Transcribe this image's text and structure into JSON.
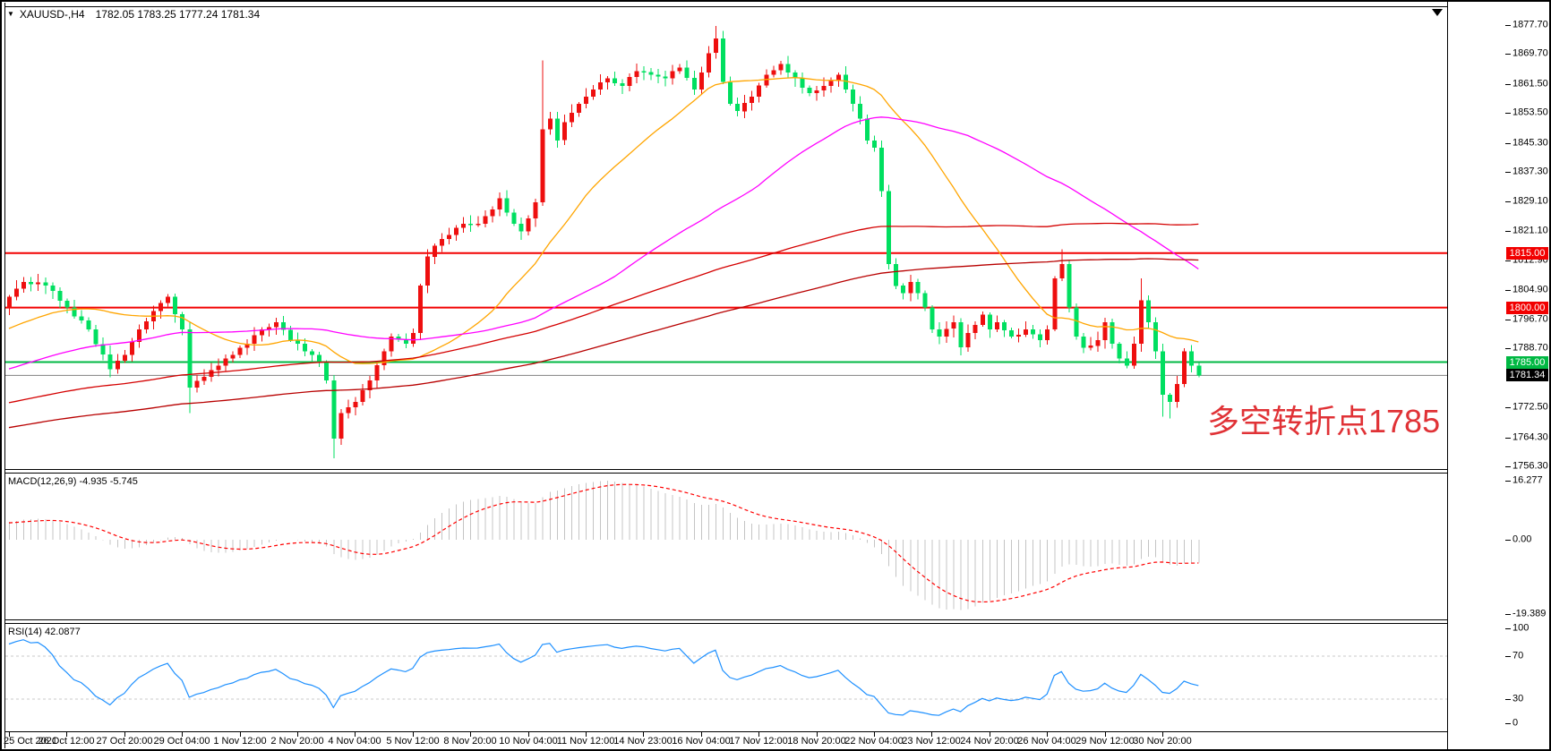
{
  "title": {
    "symbol_period": "XAUUSD-,H4",
    "ohlc": "1782.05 1783.25 1777.24 1781.34",
    "dropdown_icon": "▼"
  },
  "annotation": {
    "text": "多空转折点1785",
    "color": "#E03236"
  },
  "price_axis": {
    "ticks": [
      "1877.70",
      "1869.70",
      "1861.50",
      "1853.50",
      "1845.30",
      "1837.30",
      "1829.10",
      "1821.10",
      "1812.90",
      "1804.90",
      "1796.70",
      "1788.70",
      "1772.50",
      "1764.30",
      "1756.30"
    ],
    "badges": [
      {
        "label": "1815.00",
        "price": 1815.0,
        "bg": "#F20000",
        "fg": "#FFFFFF"
      },
      {
        "label": "1800.00",
        "price": 1800.0,
        "bg": "#F20000",
        "fg": "#FFFFFF"
      },
      {
        "label": "1785.00",
        "price": 1785.0,
        "bg": "#00B843",
        "fg": "#FFFFFF"
      }
    ],
    "current": {
      "label": "1781.34",
      "price": 1781.34,
      "bg": "#000000",
      "fg": "#FFFFFF"
    }
  },
  "time_axis": {
    "labels": [
      "25 Oct 2021",
      "26 Oct 12:00",
      "27 Oct 20:00",
      "29 Oct 04:00",
      "1 Nov 12:00",
      "2 Nov 20:00",
      "4 Nov 04:00",
      "5 Nov 12:00",
      "8 Nov 20:00",
      "10 Nov 04:00",
      "11 Nov 12:00",
      "14 Nov 23:00",
      "16 Nov 04:00",
      "17 Nov 12:00",
      "18 Nov 20:00",
      "22 Nov 04:00",
      "23 Nov 12:00",
      "24 Nov 20:00",
      "26 Nov 04:00",
      "29 Nov 12:00",
      "30 Nov 20:00"
    ]
  },
  "macd_panel": {
    "label": "MACD(12,26,9) -4.935 -5.745",
    "axis": [
      "16.277",
      "0.00",
      "-19.389"
    ]
  },
  "rsi_panel": {
    "label": "RSI(14) 42.0877",
    "axis": [
      "100",
      "70",
      "30",
      "0"
    ]
  },
  "chart_data": {
    "type": "candlestick",
    "symbol": "XAUUSD",
    "timeframe": "H4",
    "title": "XAUUSD-,H4 1782.05 1783.25 1777.24 1781.34",
    "price_scale": {
      "top": 1877.7,
      "bottom": 1756.3
    },
    "bars_total": 166,
    "bull_color": "#EE0F0F",
    "bear_color": "#00DF60",
    "ohlc_waypoints": [
      [
        0,
        1803
      ],
      [
        2,
        1807
      ],
      [
        5,
        1806
      ],
      [
        8,
        1800
      ],
      [
        11,
        1794
      ],
      [
        14,
        1783
      ],
      [
        16,
        1787
      ],
      [
        18,
        1794
      ],
      [
        20,
        1799
      ],
      [
        22,
        1803
      ],
      [
        24,
        1794
      ],
      [
        25,
        1778
      ],
      [
        27,
        1781
      ],
      [
        29,
        1784
      ],
      [
        31,
        1787
      ],
      [
        33,
        1790
      ],
      [
        35,
        1794
      ],
      [
        37,
        1796
      ],
      [
        39,
        1791
      ],
      [
        41,
        1788
      ],
      [
        43,
        1785
      ],
      [
        44,
        1780
      ],
      [
        45,
        1764
      ],
      [
        46,
        1771
      ],
      [
        48,
        1774
      ],
      [
        50,
        1780
      ],
      [
        52,
        1788
      ],
      [
        53,
        1792
      ],
      [
        55,
        1790
      ],
      [
        56,
        1793
      ],
      [
        57,
        1806
      ],
      [
        58,
        1814
      ],
      [
        59,
        1817
      ],
      [
        61,
        1820
      ],
      [
        63,
        1823
      ],
      [
        65,
        1823
      ],
      [
        67,
        1827
      ],
      [
        68,
        1830
      ],
      [
        70,
        1823
      ],
      [
        71,
        1821
      ],
      [
        73,
        1829
      ],
      [
        74,
        1849
      ],
      [
        75,
        1852
      ],
      [
        76,
        1846
      ],
      [
        77,
        1851
      ],
      [
        79,
        1856
      ],
      [
        81,
        1860
      ],
      [
        83,
        1863
      ],
      [
        85,
        1861
      ],
      [
        87,
        1865
      ],
      [
        89,
        1864
      ],
      [
        91,
        1863
      ],
      [
        93,
        1866
      ],
      [
        95,
        1860
      ],
      [
        97,
        1870
      ],
      [
        98,
        1874
      ],
      [
        99,
        1862
      ],
      [
        100,
        1856
      ],
      [
        101,
        1854
      ],
      [
        103,
        1858
      ],
      [
        105,
        1864
      ],
      [
        107,
        1867
      ],
      [
        109,
        1863
      ],
      [
        111,
        1859
      ],
      [
        113,
        1861
      ],
      [
        115,
        1864
      ],
      [
        116,
        1860
      ],
      [
        117,
        1856
      ],
      [
        118,
        1852
      ],
      [
        119,
        1846
      ],
      [
        120,
        1844
      ],
      [
        121,
        1832
      ],
      [
        122,
        1812
      ],
      [
        123,
        1806
      ],
      [
        124,
        1804
      ],
      [
        125,
        1807
      ],
      [
        126,
        1804
      ],
      [
        127,
        1800
      ],
      [
        128,
        1794
      ],
      [
        129,
        1792
      ],
      [
        131,
        1796
      ],
      [
        132,
        1789
      ],
      [
        133,
        1793
      ],
      [
        135,
        1798
      ],
      [
        136,
        1794
      ],
      [
        137,
        1796
      ],
      [
        139,
        1792
      ],
      [
        141,
        1794
      ],
      [
        143,
        1791
      ],
      [
        144,
        1794
      ],
      [
        145,
        1808
      ],
      [
        146,
        1812
      ],
      [
        147,
        1800
      ],
      [
        148,
        1792
      ],
      [
        149,
        1789
      ],
      [
        151,
        1791
      ],
      [
        152,
        1796
      ],
      [
        153,
        1790
      ],
      [
        154,
        1786
      ],
      [
        155,
        1784
      ],
      [
        156,
        1790
      ],
      [
        157,
        1802
      ],
      [
        158,
        1796
      ],
      [
        159,
        1788
      ],
      [
        160,
        1776
      ],
      [
        161,
        1774
      ],
      [
        162,
        1779
      ],
      [
        163,
        1788
      ],
      [
        164,
        1784
      ],
      [
        165,
        1781.3
      ]
    ],
    "wick_overrides": {
      "25": {
        "low": 1771
      },
      "45": {
        "low": 1758.6
      },
      "74": {
        "high": 1868
      },
      "98": {
        "high": 1877.4
      },
      "146": {
        "high": 1816
      },
      "157": {
        "high": 1808
      },
      "160": {
        "low": 1770
      },
      "161": {
        "low": 1769.5
      }
    },
    "history_waypoints": [
      [
        -200,
        1740
      ],
      [
        -170,
        1748
      ],
      [
        -150,
        1753
      ],
      [
        -130,
        1760
      ],
      [
        -110,
        1757
      ],
      [
        -90,
        1765
      ],
      [
        -70,
        1772
      ],
      [
        -50,
        1769
      ],
      [
        -30,
        1783
      ],
      [
        -15,
        1792
      ],
      [
        -5,
        1798
      ],
      [
        -1,
        1801
      ]
    ],
    "horizontal_levels": [
      {
        "price": 1815.0,
        "color": "#F20000",
        "width": 2
      },
      {
        "price": 1800.0,
        "color": "#F20000",
        "width": 2
      },
      {
        "price": 1785.0,
        "color": "#00B843",
        "width": 2
      }
    ],
    "current_price": 1781.34,
    "current_price_line_color": "#808080",
    "moving_averages": [
      {
        "period": 24,
        "color": "#FFA500"
      },
      {
        "period": 60,
        "color": "#FF00FF"
      },
      {
        "period": 120,
        "color": "#D40000"
      },
      {
        "period": 180,
        "color": "#B80000"
      }
    ],
    "indicators": {
      "macd": {
        "params": [
          12,
          26,
          9
        ],
        "value": -4.935,
        "signal": -5.745,
        "scale_max": 16.277,
        "scale_min": -19.389,
        "histogram_color": "#C4C4C4",
        "signal_color": "#FF0000"
      },
      "rsi": {
        "period": 14,
        "value": 42.0877,
        "color": "#1E90FF",
        "levels": [
          70,
          30
        ],
        "level_color": "#C8C8C8",
        "scale": [
          100,
          70,
          30,
          0
        ]
      }
    }
  }
}
